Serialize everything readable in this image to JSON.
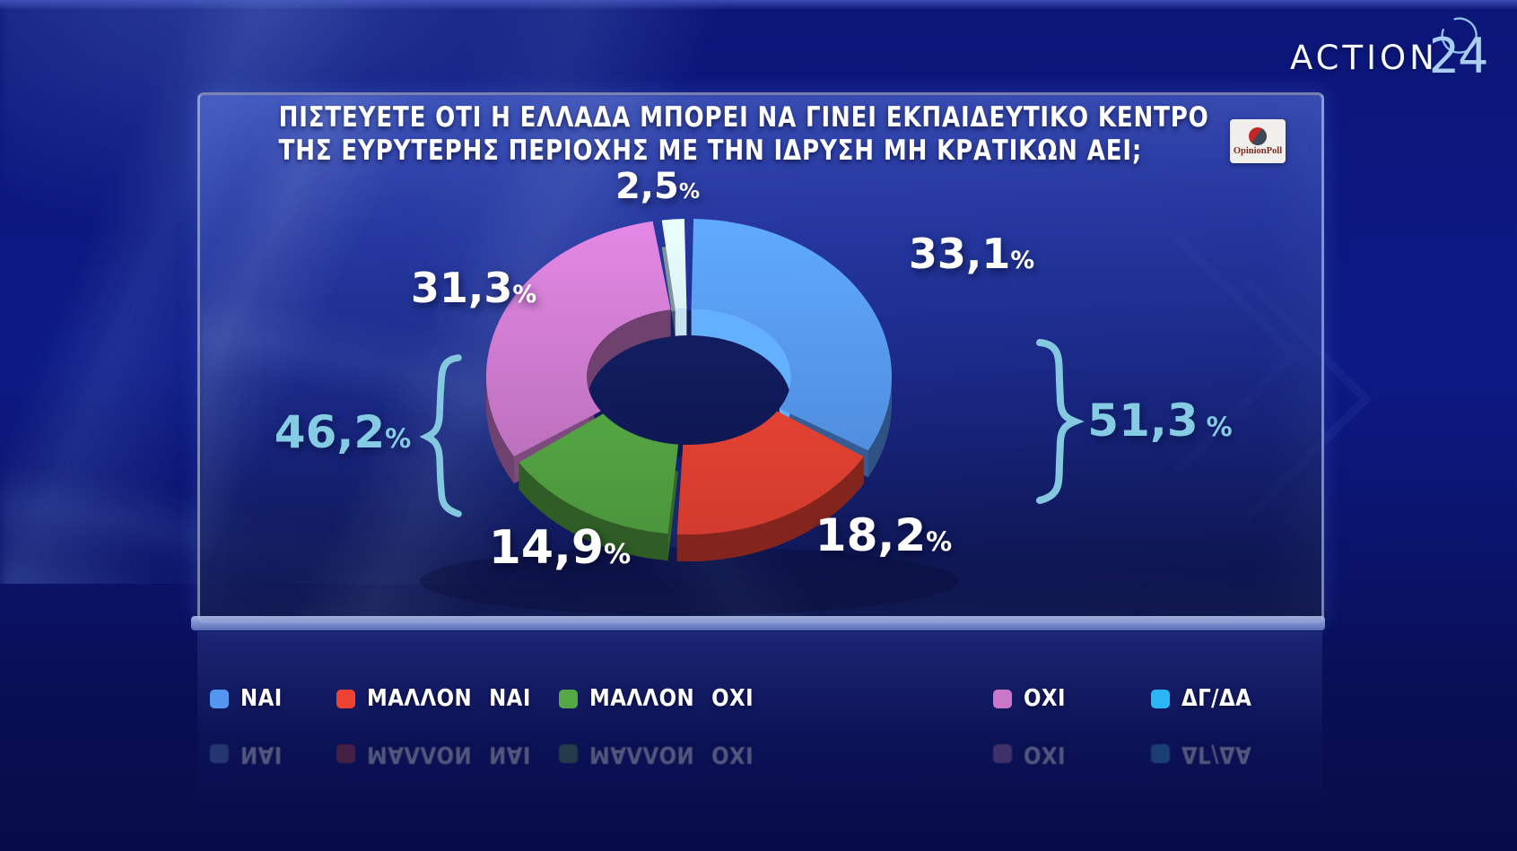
{
  "channel": {
    "name": "ACTION",
    "number": "24"
  },
  "poll_source": {
    "name": "OpinionPoll"
  },
  "title": {
    "line1": "ΠΙΣΤΕΥΕΤΕ ΟΤΙ Η ΕΛΛΑΔΑ ΜΠΟΡΕΙ ΝΑ ΓΙΝΕΙ ΕΚΠΑΙΔΕΥΤΙΚΟ ΚΕΝΤΡΟ",
    "line2": "ΤΗΣ ΕΥΡΥΤΕΡΗΣ ΠΕΡΙΟΧΗΣ ΜΕ ΤΗΝ ΙΔΡΥΣΗ ΜΗ ΚΡΑΤΙΚΩΝ ΑΕΙ;"
  },
  "chart_data": {
    "type": "pie",
    "subtype": "3d-donut",
    "unit": "%",
    "percent_sign": "%",
    "title": "ΠΙΣΤΕΥΕΤΕ ΟΤΙ Η ΕΛΛΑΔΑ ΜΠΟΡΕΙ ΝΑ ΓΙΝΕΙ ΕΚΠΑΙΔΕΥΤΙΚΟ ΚΕΝΤΡΟ ΤΗΣ ΕΥΡΥΤΕΡΗΣ ΠΕΡΙΟΧΗΣ ΜΕ ΤΗΝ ΙΔΡΥΣΗ ΜΗ ΚΡΑΤΙΚΩΝ ΑΕΙ;",
    "slices": [
      {
        "label": "ΝΑΙ",
        "value": 33.1,
        "display": "33,1",
        "color": "#5495F0"
      },
      {
        "label": "ΜΑΛΛΟΝ ΝΑΙ",
        "value": 18.2,
        "display": "18,2",
        "color": "#EE4333"
      },
      {
        "label": "ΜΑΛΛΟΝ ΟΧΙ",
        "value": 14.9,
        "display": "14,9",
        "color": "#55A944"
      },
      {
        "label": "ΟΧΙ",
        "value": 31.3,
        "display": "31,3",
        "color": "#C877C9"
      },
      {
        "label": "ΔΓ/ΔΑ",
        "value": 2.5,
        "display": "2,5",
        "color": "#CFEEFA",
        "legend_color": "#2AB5F5"
      }
    ],
    "clockwise_order": [
      "ΔΓ/ΔΑ",
      "ΝΑΙ",
      "ΜΑΛΛΟΝ ΝΑΙ",
      "ΜΑΛΛΟΝ ΟΧΙ",
      "ΟΧΙ"
    ],
    "start_angle_deg": -9,
    "groups": [
      {
        "display": "51,3",
        "value": 51.3,
        "members": [
          "ΝΑΙ",
          "ΜΑΛΛΟΝ ΝΑΙ"
        ],
        "side": "right"
      },
      {
        "display": "46,2",
        "value": 46.2,
        "members": [
          "ΜΑΛΛΟΝ ΟΧΙ",
          "ΟΧΙ"
        ],
        "side": "left"
      }
    ],
    "group_label_color": "#86CBE4",
    "legend_position": "bottom"
  }
}
